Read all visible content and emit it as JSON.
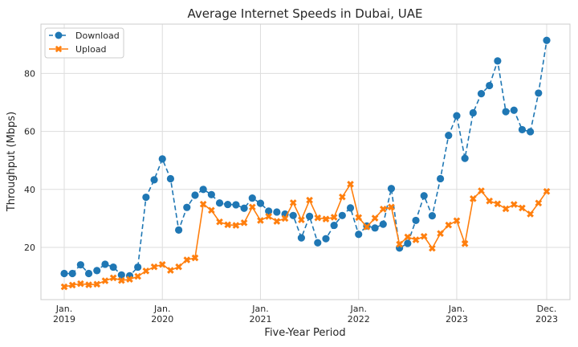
{
  "chart_data": {
    "type": "line",
    "title": "Average Internet Speeds in Dubai, UAE",
    "xlabel": "Five-Year Period",
    "ylabel": "Throughput (Mbps)",
    "ylim": [
      2,
      97
    ],
    "yticks": [
      20,
      40,
      60,
      80
    ],
    "x_start": "2019-01",
    "x_end": "2023-12",
    "xticks": [
      {
        "line1": "Jan.",
        "line2": "2019",
        "month": "2019-01"
      },
      {
        "line1": "Jan.",
        "line2": "2020",
        "month": "2020-01"
      },
      {
        "line1": "Jan.",
        "line2": "2021",
        "month": "2021-01"
      },
      {
        "line1": "Jan.",
        "line2": "2022",
        "month": "2022-01"
      },
      {
        "line1": "Jan.",
        "line2": "2023",
        "month": "2023-01"
      },
      {
        "line1": "Dec.",
        "line2": "2023",
        "month": "2023-12"
      }
    ],
    "grid": true,
    "legend_position": "top-left",
    "series": [
      {
        "name": "Download",
        "color": "#1f77b4",
        "line_style": "dashed",
        "marker": "circle",
        "values": [
          11.0,
          11.0,
          14.0,
          11.0,
          12.0,
          14.2,
          13.2,
          10.5,
          10.2,
          13.2,
          37.3,
          43.3,
          50.5,
          43.7,
          26.0,
          33.8,
          38.0,
          40.0,
          38.2,
          35.3,
          34.8,
          34.7,
          33.5,
          37.0,
          35.2,
          32.5,
          32.2,
          31.5,
          31.0,
          23.3,
          30.7,
          21.6,
          23.0,
          27.6,
          31.0,
          33.6,
          24.5,
          27.4,
          26.7,
          28.0,
          40.3,
          19.8,
          21.4,
          29.3,
          37.8,
          30.9,
          43.7,
          58.6,
          65.4,
          50.7,
          66.4,
          73.0,
          75.8,
          84.3,
          66.8,
          67.3,
          60.6,
          59.9,
          73.2,
          91.4
        ]
      },
      {
        "name": "Upload",
        "color": "#ff7f0e",
        "line_style": "solid",
        "marker": "x",
        "values": [
          6.4,
          7.0,
          7.5,
          7.1,
          7.3,
          8.5,
          9.5,
          8.6,
          9.0,
          10.0,
          11.9,
          13.3,
          14.1,
          12.1,
          13.3,
          15.7,
          16.4,
          34.9,
          32.8,
          28.8,
          27.8,
          27.6,
          28.5,
          33.9,
          29.3,
          30.7,
          29.0,
          30.0,
          35.4,
          29.5,
          36.3,
          30.2,
          29.8,
          30.4,
          37.4,
          41.8,
          30.3,
          27.1,
          30.1,
          33.2,
          33.9,
          21.1,
          23.6,
          22.6,
          23.8,
          19.7,
          24.8,
          27.7,
          29.2,
          21.3,
          36.8,
          39.5,
          36.0,
          35.0,
          33.3,
          34.8,
          33.6,
          31.5,
          35.3,
          39.3
        ]
      }
    ]
  }
}
